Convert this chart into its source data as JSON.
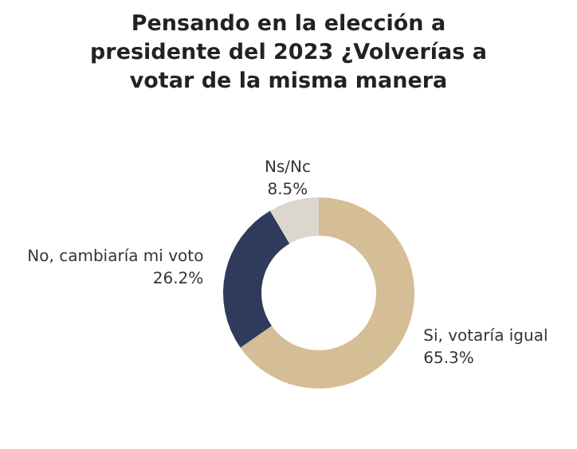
{
  "chart_data": {
    "type": "donut",
    "title": "Pensando en la elección a presidente del 2023 ¿Volverías a votar de la misma manera",
    "categories": [
      "Si, votaría igual",
      "No, cambiaría mi voto",
      "Ns/Nc"
    ],
    "values": [
      65.3,
      26.2,
      8.5
    ],
    "colors": [
      "#d5bd95",
      "#2f3b5c",
      "#dcd7ce"
    ],
    "value_labels": [
      "65.3%",
      "26.2%",
      "8.5%"
    ],
    "legend": false
  }
}
